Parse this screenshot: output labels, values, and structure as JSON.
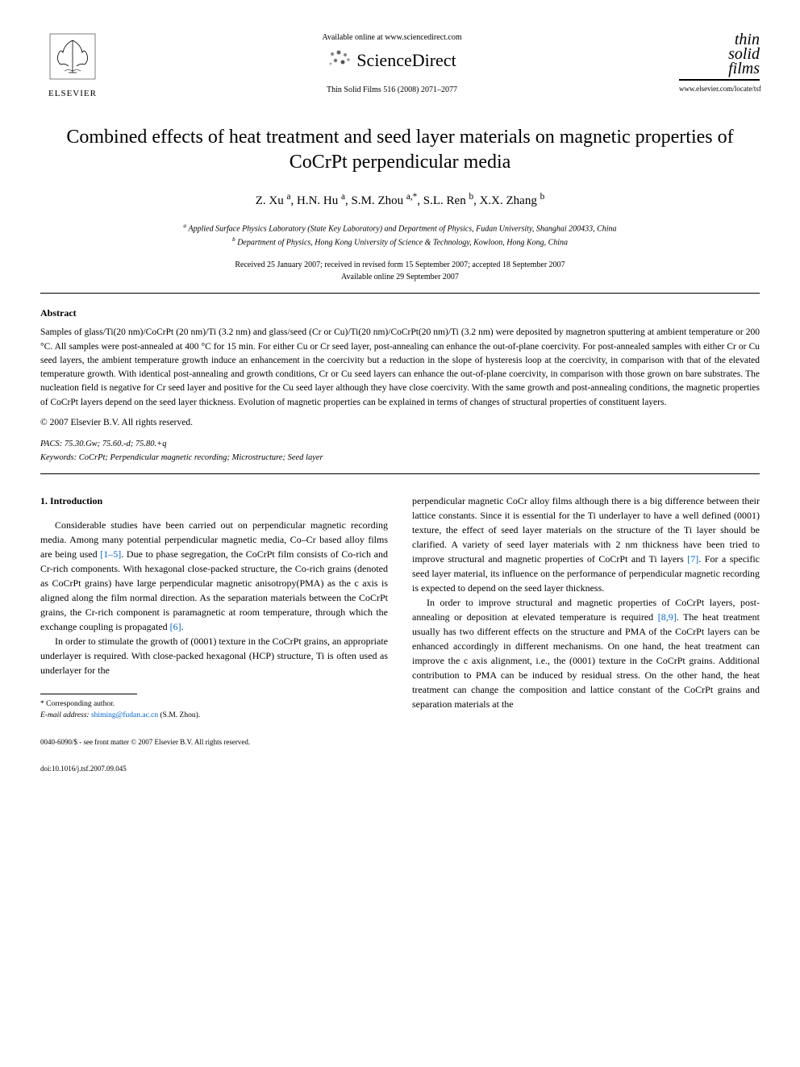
{
  "header": {
    "publisher_name": "ELSEVIER",
    "available_online": "Available online at www.sciencedirect.com",
    "platform_name": "ScienceDirect",
    "journal_ref": "Thin Solid Films 516 (2008) 2071–2077",
    "journal_logo_lines": [
      "thin",
      "solid",
      "films"
    ],
    "journal_url": "www.elsevier.com/locate/tsf"
  },
  "title": "Combined effects of heat treatment and seed layer materials on magnetic properties of CoCrPt perpendicular media",
  "authors_html": "Z. Xu <sup>a</sup>, H.N. Hu <sup>a</sup>, S.M. Zhou <sup>a,*</sup>, S.L. Ren <sup>b</sup>, X.X. Zhang <sup>b</sup>",
  "affiliations": {
    "a": "Applied Surface Physics Laboratory (State Key Laboratory) and Department of Physics, Fudan University, Shanghai 200433, China",
    "b": "Department of Physics, Hong Kong University of Science & Technology, Kowloon, Hong Kong, China"
  },
  "dates": {
    "received": "Received 25 January 2007; received in revised form 15 September 2007; accepted 18 September 2007",
    "available": "Available online 29 September 2007"
  },
  "abstract": {
    "heading": "Abstract",
    "body": "Samples of glass/Ti(20 nm)/CoCrPt (20 nm)/Ti (3.2 nm) and glass/seed (Cr or Cu)/Ti(20 nm)/CoCrPt(20 nm)/Ti (3.2 nm) were deposited by magnetron sputtering at ambient temperature or 200 °C. All samples were post-annealed at 400 °C for 15 min. For either Cu or Cr seed layer, post-annealing can enhance the out-of-plane coercivity. For post-annealed samples with either Cr or Cu seed layers, the ambient temperature growth induce an enhancement in the coercivity but a reduction in the slope of hysteresis loop at the coercivity, in comparison with that of the elevated temperature growth. With identical post-annealing and growth conditions, Cr or Cu seed layers can enhance the out-of-plane coercivity, in comparison with those grown on bare substrates. The nucleation field is negative for Cr seed layer and positive for the Cu seed layer although they have close coercivity. With the same growth and post-annealing conditions, the magnetic properties of CoCrPt layers depend on the seed layer thickness. Evolution of magnetic properties can be explained in terms of changes of structural properties of constituent layers.",
    "copyright": "© 2007 Elsevier B.V. All rights reserved."
  },
  "pacs": "PACS: 75.30.Gw; 75.60.-d; 75.80.+q",
  "keywords": "Keywords: CoCrPt; Perpendicular magnetic recording; Microstructure; Seed layer",
  "section1": {
    "heading": "1. Introduction",
    "left_p1_pre": "Considerable studies have been carried out on perpendicular magnetic recording media. Among many potential perpendicular magnetic media, Co–Cr based alloy films are being used ",
    "left_p1_ref1": "[1–5]",
    "left_p1_mid": ". Due to phase segregation, the CoCrPt film consists of Co-rich and Cr-rich components. With hexagonal close-packed structure, the Co-rich grains (denoted as CoCrPt grains) have large perpendicular magnetic anisotropy(PMA) as the c axis is aligned along the film normal direction. As the separation materials between the CoCrPt grains, the Cr-rich component is paramagnetic at room temperature, through which the exchange coupling is propagated ",
    "left_p1_ref2": "[6]",
    "left_p1_post": ".",
    "left_p2": "In order to stimulate the growth of (0001) texture in the CoCrPt grains, an appropriate underlayer is required. With close-packed hexagonal (HCP) structure, Ti is often used as underlayer for the",
    "right_p1_pre": "perpendicular magnetic CoCr alloy films although there is a big difference between their lattice constants. Since it is essential for the Ti underlayer to have a well defined (0001) texture, the effect of seed layer materials on the structure of the Ti layer should be clarified. A variety of seed layer materials with 2 nm thickness have been tried to improve structural and magnetic properties of CoCrPt and Ti layers ",
    "right_p1_ref": "[7]",
    "right_p1_post": ". For a specific seed layer material, its influence on the performance of perpendicular magnetic recording is expected to depend on the seed layer thickness.",
    "right_p2_pre": "In order to improve structural and magnetic properties of CoCrPt layers, post-annealing or deposition at elevated temperature is required ",
    "right_p2_ref": "[8,9]",
    "right_p2_post": ". The heat treatment usually has two different effects on the structure and PMA of the CoCrPt layers can be enhanced accordingly in different mechanisms. On one hand, the heat treatment can improve the c axis alignment, i.e., the (0001) texture in the CoCrPt grains. Additional contribution to PMA can be induced by residual stress. On the other hand, the heat treatment can change the composition and lattice constant of the CoCrPt grains and separation materials at the"
  },
  "footnote": {
    "corresponding": "* Corresponding author.",
    "email_label": "E-mail address: ",
    "email": "shiming@fudan.ac.cn",
    "email_who": " (S.M. Zhou)."
  },
  "footer": {
    "issn": "0040-6090/$ - see front matter © 2007 Elsevier B.V. All rights reserved.",
    "doi": "doi:10.1016/j.tsf.2007.09.045"
  },
  "colors": {
    "link": "#0066cc",
    "text": "#000000",
    "bg": "#ffffff"
  }
}
